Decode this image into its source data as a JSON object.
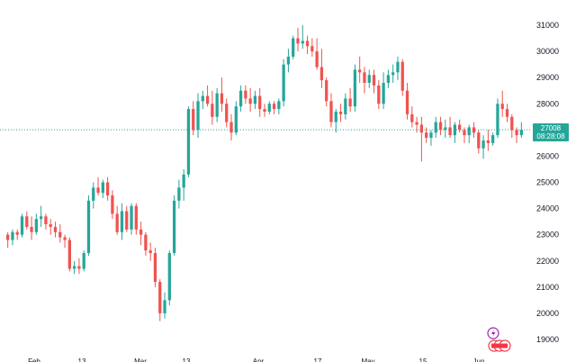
{
  "colors": {
    "up": "#26a69a",
    "down": "#ef5350",
    "background": "#ffffff",
    "last_price_line": "#26a69a",
    "event_bolt": "#9c27b0",
    "event_flag": "#f23645"
  },
  "price_tag": {
    "price": "27008",
    "countdown": "08:28:08"
  },
  "event_icons": [
    "lightning-icon",
    "flag-icon"
  ],
  "chart_data": {
    "type": "candlestick",
    "title": "",
    "xlabel": "",
    "ylabel": "",
    "grid": false,
    "ylim": [
      18500,
      31500
    ],
    "y_ticks": [
      19000,
      20000,
      21000,
      22000,
      23000,
      24000,
      25000,
      26000,
      27000,
      28000,
      29000,
      30000,
      31000
    ],
    "x_tick_labels": [
      "Feb",
      "13",
      "Mar",
      "13",
      "Apr",
      "17",
      "May",
      "15",
      "Jun"
    ],
    "last_price": 27008,
    "candles": [
      [
        23000,
        23100,
        22500,
        22800
      ],
      [
        22800,
        23200,
        22600,
        23100
      ],
      [
        23100,
        23200,
        22800,
        23000
      ],
      [
        23000,
        23800,
        22900,
        23700
      ],
      [
        23700,
        23900,
        23200,
        23300
      ],
      [
        23300,
        23700,
        22800,
        23100
      ],
      [
        23100,
        23800,
        23000,
        23600
      ],
      [
        23600,
        24100,
        23300,
        23700
      ],
      [
        23700,
        23800,
        23200,
        23400
      ],
      [
        23400,
        23600,
        23000,
        23300
      ],
      [
        23300,
        23500,
        22900,
        23100
      ],
      [
        23100,
        23400,
        22700,
        22900
      ],
      [
        22900,
        23000,
        22500,
        22800
      ],
      [
        22800,
        22900,
        21600,
        21700
      ],
      [
        21700,
        22000,
        21500,
        21800
      ],
      [
        21800,
        22100,
        21500,
        21700
      ],
      [
        21700,
        22400,
        21600,
        22300
      ],
      [
        22300,
        24500,
        22200,
        24300
      ],
      [
        24300,
        25000,
        24000,
        24800
      ],
      [
        24800,
        25200,
        24500,
        24600
      ],
      [
        24600,
        25100,
        24400,
        25000
      ],
      [
        25000,
        25200,
        24300,
        24500
      ],
      [
        24500,
        24700,
        23600,
        23800
      ],
      [
        23800,
        24100,
        23000,
        23100
      ],
      [
        23100,
        24200,
        22800,
        23900
      ],
      [
        23900,
        24100,
        23100,
        23200
      ],
      [
        23200,
        24200,
        23000,
        24100
      ],
      [
        24100,
        24200,
        23000,
        23200
      ],
      [
        23200,
        23500,
        22600,
        23000
      ],
      [
        23000,
        23100,
        22200,
        22400
      ],
      [
        22400,
        22700,
        22000,
        22300
      ],
      [
        22300,
        22500,
        21000,
        21200
      ],
      [
        21200,
        21300,
        19700,
        20000
      ],
      [
        20000,
        20800,
        19800,
        20500
      ],
      [
        20500,
        22400,
        20300,
        22300
      ],
      [
        22300,
        24500,
        22200,
        24300
      ],
      [
        24300,
        25100,
        24000,
        24800
      ],
      [
        24800,
        25500,
        24300,
        25300
      ],
      [
        25300,
        27900,
        25200,
        27800
      ],
      [
        27800,
        28100,
        26800,
        27000
      ],
      [
        27000,
        28400,
        26700,
        28100
      ],
      [
        28100,
        28500,
        27800,
        28300
      ],
      [
        28300,
        28700,
        27900,
        28000
      ],
      [
        28000,
        28500,
        27200,
        27500
      ],
      [
        27500,
        28600,
        27300,
        28400
      ],
      [
        28400,
        29000,
        27700,
        28000
      ],
      [
        28000,
        28200,
        27100,
        27300
      ],
      [
        27300,
        27600,
        26600,
        26900
      ],
      [
        26900,
        28100,
        26800,
        27900
      ],
      [
        27900,
        28700,
        27700,
        28500
      ],
      [
        28500,
        28700,
        28000,
        28200
      ],
      [
        28200,
        28600,
        27700,
        28000
      ],
      [
        28000,
        28500,
        27800,
        28300
      ],
      [
        28300,
        28600,
        27500,
        27800
      ],
      [
        27800,
        28000,
        27500,
        27700
      ],
      [
        27700,
        28100,
        27600,
        28000
      ],
      [
        28000,
        28100,
        27600,
        27800
      ],
      [
        27800,
        28200,
        27600,
        28100
      ],
      [
        28100,
        29700,
        27900,
        29500
      ],
      [
        29500,
        30100,
        29200,
        29800
      ],
      [
        29800,
        30600,
        29700,
        30500
      ],
      [
        30500,
        30900,
        30000,
        30300
      ],
      [
        30300,
        31000,
        30100,
        30400
      ],
      [
        30400,
        30600,
        29900,
        30200
      ],
      [
        30200,
        30500,
        29800,
        30000
      ],
      [
        30000,
        30500,
        29300,
        29400
      ],
      [
        29400,
        30100,
        28600,
        28900
      ],
      [
        28900,
        29000,
        27900,
        28100
      ],
      [
        28100,
        28400,
        27100,
        27300
      ],
      [
        27300,
        27800,
        26900,
        27700
      ],
      [
        27700,
        28000,
        27300,
        27600
      ],
      [
        27600,
        28400,
        27400,
        28200
      ],
      [
        28200,
        28600,
        27700,
        27900
      ],
      [
        27900,
        29500,
        27700,
        29300
      ],
      [
        29300,
        29800,
        28800,
        29200
      ],
      [
        29200,
        29400,
        28400,
        28800
      ],
      [
        28800,
        29300,
        28600,
        29100
      ],
      [
        29100,
        29300,
        28400,
        28700
      ],
      [
        28700,
        28900,
        27800,
        28000
      ],
      [
        28000,
        29200,
        27800,
        28800
      ],
      [
        28800,
        29300,
        28600,
        29100
      ],
      [
        29100,
        29500,
        28800,
        29200
      ],
      [
        29200,
        29800,
        28900,
        29600
      ],
      [
        29600,
        29700,
        28300,
        28500
      ],
      [
        28500,
        28800,
        27400,
        27600
      ],
      [
        27600,
        27900,
        27100,
        27300
      ],
      [
        27300,
        27500,
        26900,
        27200
      ],
      [
        27200,
        27500,
        25800,
        26900
      ],
      [
        26900,
        27100,
        26500,
        26700
      ],
      [
        26700,
        27000,
        26400,
        26900
      ],
      [
        26900,
        27500,
        26700,
        27300
      ],
      [
        27300,
        27500,
        26800,
        27000
      ],
      [
        27000,
        27400,
        26700,
        27100
      ],
      [
        27100,
        27500,
        26700,
        26800
      ],
      [
        26800,
        27300,
        26500,
        27200
      ],
      [
        27200,
        27400,
        26900,
        27000
      ],
      [
        27000,
        27100,
        26500,
        26800
      ],
      [
        26800,
        27200,
        26500,
        27100
      ],
      [
        27100,
        27300,
        26700,
        26900
      ],
      [
        26900,
        27000,
        26100,
        26300
      ],
      [
        26300,
        26800,
        25900,
        26600
      ],
      [
        26600,
        27000,
        26200,
        26500
      ],
      [
        26500,
        26900,
        26400,
        26800
      ],
      [
        26800,
        28200,
        26700,
        28000
      ],
      [
        28000,
        28500,
        27500,
        27800
      ],
      [
        27800,
        28000,
        27300,
        27500
      ],
      [
        27500,
        27600,
        26700,
        27000
      ],
      [
        27000,
        27100,
        26500,
        26800
      ],
      [
        26800,
        27300,
        26700,
        27008
      ]
    ]
  }
}
